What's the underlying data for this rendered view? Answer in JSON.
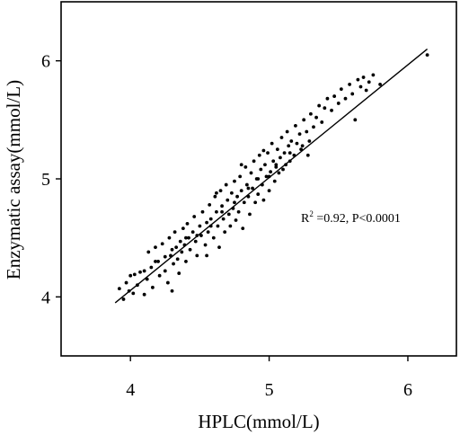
{
  "chart_data": {
    "type": "scatter",
    "title": "",
    "xlabel": "HPLC(mmol/L)",
    "ylabel": "Enzymatic assay(mmol/L)",
    "xlim": [
      3.5,
      6.35
    ],
    "ylim": [
      3.5,
      6.5
    ],
    "x_ticks": [
      "4",
      "5",
      "6"
    ],
    "y_ticks": [
      "4",
      "5",
      "6"
    ],
    "grid": false,
    "annotation": {
      "r_prefix": "R",
      "r_superscript": "2",
      "rest": " =0.92, P<0.0001"
    },
    "fit_line": {
      "x": [
        3.89,
        6.14
      ],
      "y": [
        3.95,
        6.1
      ]
    },
    "points": [
      [
        3.92,
        4.07
      ],
      [
        3.95,
        3.98
      ],
      [
        3.97,
        4.12
      ],
      [
        3.99,
        4.05
      ],
      [
        4.0,
        4.18
      ],
      [
        4.02,
        4.03
      ],
      [
        4.03,
        4.19
      ],
      [
        4.05,
        4.1
      ],
      [
        4.07,
        4.21
      ],
      [
        4.1,
        4.02
      ],
      [
        4.12,
        4.15
      ],
      [
        4.13,
        4.38
      ],
      [
        4.15,
        4.25
      ],
      [
        4.16,
        4.08
      ],
      [
        4.18,
        4.42
      ],
      [
        4.2,
        4.3
      ],
      [
        4.21,
        4.18
      ],
      [
        4.23,
        4.45
      ],
      [
        4.25,
        4.34
      ],
      [
        4.25,
        4.22
      ],
      [
        4.27,
        4.12
      ],
      [
        4.28,
        4.5
      ],
      [
        4.29,
        4.35
      ],
      [
        4.3,
        4.05
      ],
      [
        4.31,
        4.28
      ],
      [
        4.32,
        4.55
      ],
      [
        4.33,
        4.42
      ],
      [
        4.34,
        4.32
      ],
      [
        4.35,
        4.2
      ],
      [
        4.36,
        4.47
      ],
      [
        4.37,
        4.38
      ],
      [
        4.38,
        4.58
      ],
      [
        4.39,
        4.44
      ],
      [
        4.4,
        4.3
      ],
      [
        4.41,
        4.62
      ],
      [
        4.42,
        4.5
      ],
      [
        4.43,
        4.4
      ],
      [
        4.45,
        4.55
      ],
      [
        4.46,
        4.68
      ],
      [
        4.47,
        4.47
      ],
      [
        4.48,
        4.35
      ],
      [
        4.5,
        4.6
      ],
      [
        4.51,
        4.52
      ],
      [
        4.52,
        4.72
      ],
      [
        4.54,
        4.44
      ],
      [
        4.55,
        4.63
      ],
      [
        4.56,
        4.55
      ],
      [
        4.57,
        4.78
      ],
      [
        4.58,
        4.66
      ],
      [
        4.6,
        4.5
      ],
      [
        4.61,
        4.85
      ],
      [
        4.62,
        4.72
      ],
      [
        4.63,
        4.6
      ],
      [
        4.64,
        4.42
      ],
      [
        4.65,
        4.9
      ],
      [
        4.66,
        4.77
      ],
      [
        4.67,
        4.66
      ],
      [
        4.68,
        4.55
      ],
      [
        4.69,
        4.95
      ],
      [
        4.7,
        4.82
      ],
      [
        4.71,
        4.7
      ],
      [
        4.72,
        4.6
      ],
      [
        4.73,
        4.88
      ],
      [
        4.74,
        4.75
      ],
      [
        4.75,
        4.98
      ],
      [
        4.76,
        4.65
      ],
      [
        4.77,
        4.85
      ],
      [
        4.78,
        4.72
      ],
      [
        4.79,
        5.02
      ],
      [
        4.8,
        4.9
      ],
      [
        4.81,
        4.58
      ],
      [
        4.82,
        4.8
      ],
      [
        4.83,
        5.1
      ],
      [
        4.84,
        4.95
      ],
      [
        4.85,
        4.85
      ],
      [
        4.86,
        4.7
      ],
      [
        4.87,
        5.05
      ],
      [
        4.88,
        4.92
      ],
      [
        4.89,
        5.15
      ],
      [
        4.9,
        4.8
      ],
      [
        4.91,
        5.0
      ],
      [
        4.92,
        4.87
      ],
      [
        4.93,
        5.2
      ],
      [
        4.94,
        5.08
      ],
      [
        4.95,
        4.95
      ],
      [
        4.96,
        4.82
      ],
      [
        4.97,
        5.12
      ],
      [
        4.98,
        5.02
      ],
      [
        4.99,
        5.22
      ],
      [
        5.0,
        4.9
      ],
      [
        5.01,
        5.06
      ],
      [
        5.02,
        5.3
      ],
      [
        5.03,
        5.15
      ],
      [
        5.04,
        4.98
      ],
      [
        5.05,
        5.1
      ],
      [
        5.06,
        5.25
      ],
      [
        5.07,
        5.05
      ],
      [
        5.08,
        5.18
      ],
      [
        5.09,
        5.35
      ],
      [
        5.1,
        5.08
      ],
      [
        5.11,
        5.22
      ],
      [
        5.12,
        5.12
      ],
      [
        5.13,
        5.4
      ],
      [
        5.14,
        5.28
      ],
      [
        5.15,
        5.15
      ],
      [
        5.16,
        5.32
      ],
      [
        5.18,
        5.2
      ],
      [
        5.19,
        5.45
      ],
      [
        5.2,
        5.3
      ],
      [
        5.22,
        5.38
      ],
      [
        5.23,
        5.25
      ],
      [
        5.25,
        5.5
      ],
      [
        5.27,
        5.4
      ],
      [
        5.29,
        5.32
      ],
      [
        5.3,
        5.55
      ],
      [
        5.32,
        5.44
      ],
      [
        5.34,
        5.52
      ],
      [
        5.36,
        5.62
      ],
      [
        5.38,
        5.48
      ],
      [
        5.4,
        5.6
      ],
      [
        5.42,
        5.68
      ],
      [
        5.45,
        5.58
      ],
      [
        5.47,
        5.7
      ],
      [
        5.5,
        5.64
      ],
      [
        5.52,
        5.76
      ],
      [
        5.55,
        5.68
      ],
      [
        5.58,
        5.8
      ],
      [
        5.6,
        5.72
      ],
      [
        5.62,
        5.5
      ],
      [
        5.64,
        5.84
      ],
      [
        5.66,
        5.78
      ],
      [
        5.68,
        5.86
      ],
      [
        5.7,
        5.75
      ],
      [
        5.72,
        5.82
      ],
      [
        5.75,
        5.88
      ],
      [
        5.8,
        5.8
      ],
      [
        6.14,
        6.05
      ],
      [
        4.18,
        4.3
      ],
      [
        4.4,
        4.5
      ],
      [
        4.58,
        4.6
      ],
      [
        4.75,
        4.8
      ],
      [
        4.92,
        5.0
      ],
      [
        5.05,
        5.12
      ],
      [
        5.24,
        5.28
      ],
      [
        4.3,
        4.4
      ],
      [
        4.48,
        4.52
      ],
      [
        4.66,
        4.72
      ],
      [
        4.85,
        4.92
      ],
      [
        5.0,
        5.02
      ],
      [
        5.15,
        5.22
      ],
      [
        4.1,
        4.22
      ],
      [
        4.62,
        4.88
      ],
      [
        4.8,
        5.12
      ],
      [
        4.96,
        5.24
      ],
      [
        5.28,
        5.2
      ],
      [
        4.55,
        4.35
      ]
    ]
  }
}
